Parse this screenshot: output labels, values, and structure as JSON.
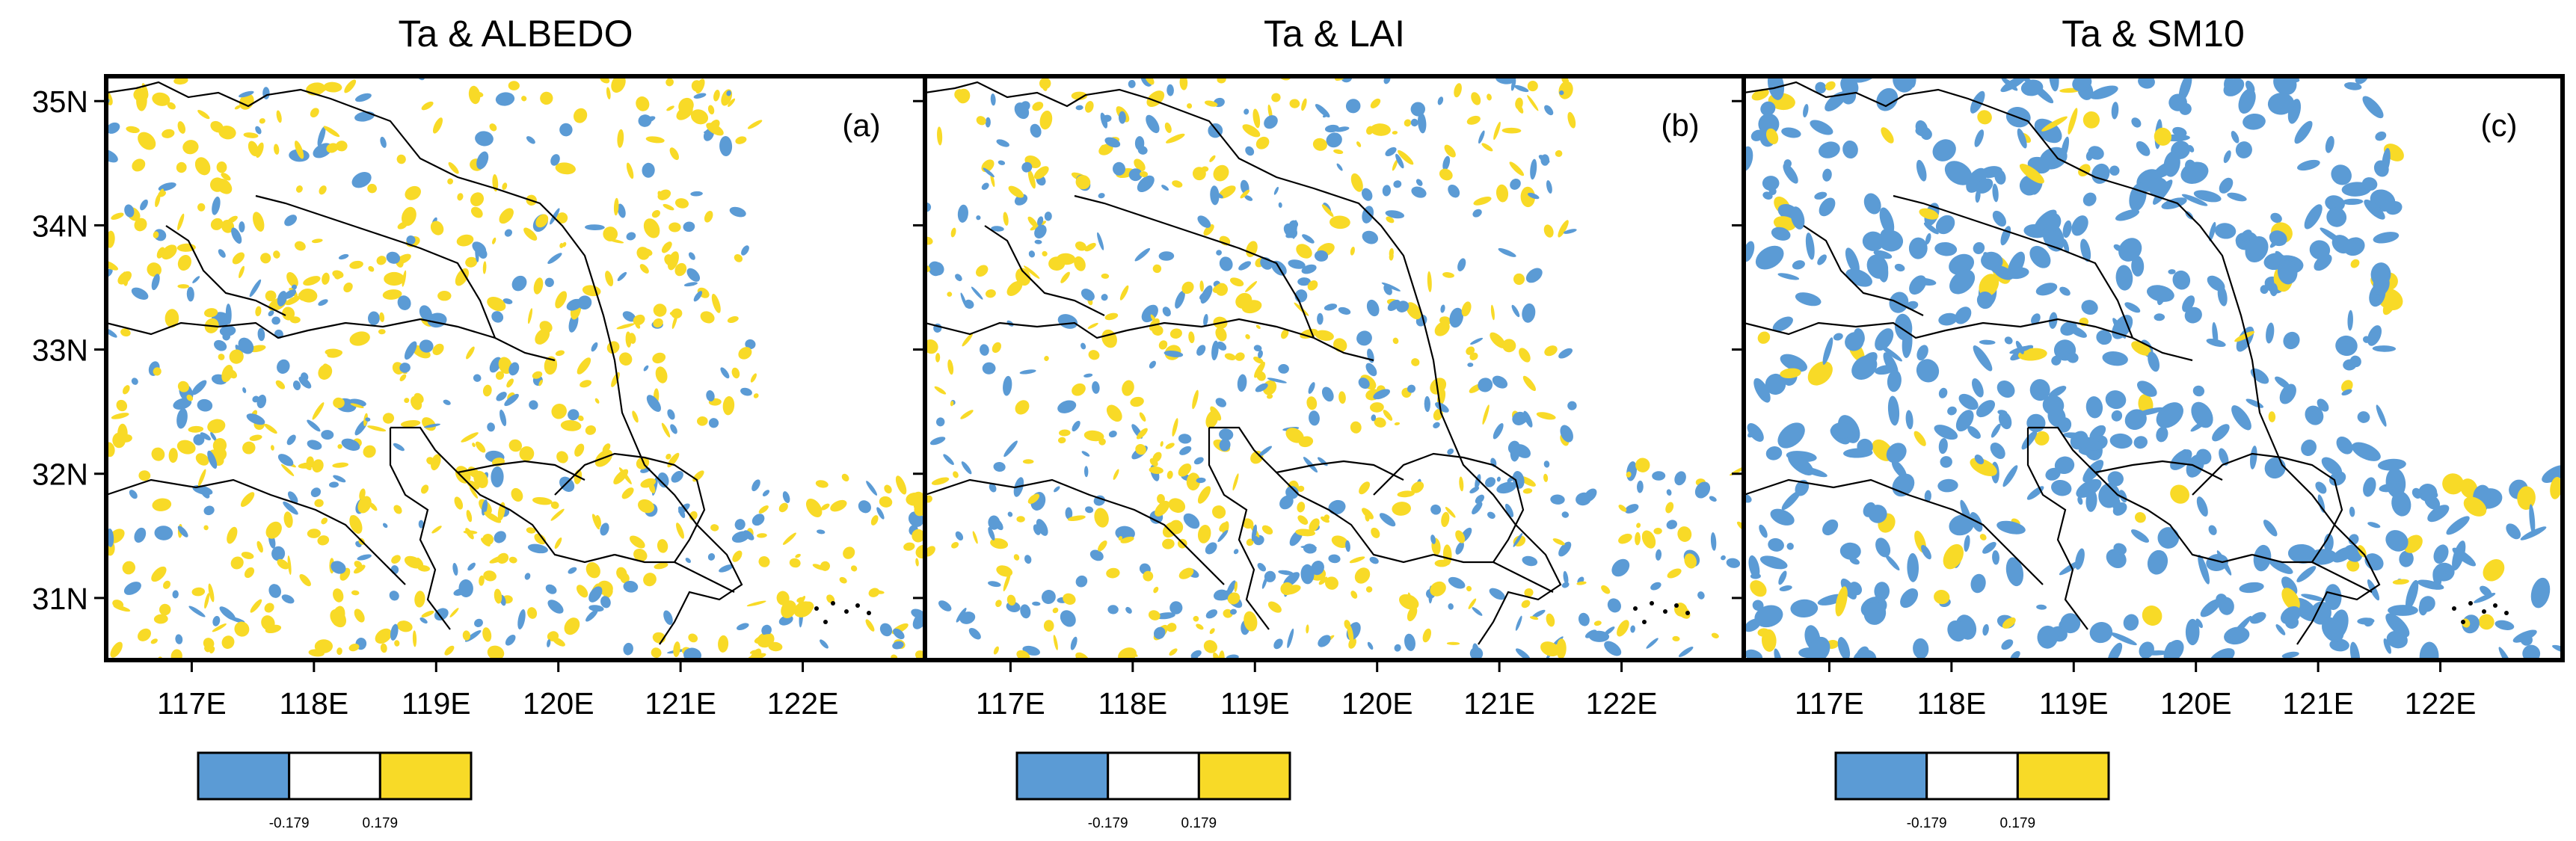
{
  "chart_data": [
    {
      "type": "map",
      "title": "Ta & ALBEDO",
      "panel_label": "(a)",
      "x_ticks": [
        "117E",
        "118E",
        "119E",
        "120E",
        "121E",
        "122E"
      ],
      "y_ticks": [
        "35N",
        "34N",
        "33N",
        "32N",
        "31N"
      ],
      "x_tick_values": [
        117,
        118,
        119,
        120,
        121,
        122
      ],
      "y_tick_values": [
        35,
        34,
        33,
        32,
        31
      ],
      "xlim": [
        116.3,
        123.0
      ],
      "ylim": [
        30.5,
        35.2
      ],
      "colorbar": {
        "colors": [
          "#5b9bd5",
          "#ffffff",
          "#f8da27"
        ],
        "labels": [
          "-0.179",
          "0.179"
        ],
        "bins": [
          "< -0.179",
          "-0.179 to 0.179",
          "> 0.179"
        ]
      },
      "dominant_class": "positive"
    },
    {
      "type": "map",
      "title": "Ta & LAI",
      "panel_label": "(b)",
      "x_ticks": [
        "117E",
        "118E",
        "119E",
        "120E",
        "121E",
        "122E"
      ],
      "y_ticks": [],
      "x_tick_values": [
        117,
        118,
        119,
        120,
        121,
        122
      ],
      "y_tick_values": [
        35,
        34,
        33,
        32,
        31
      ],
      "xlim": [
        116.3,
        123.0
      ],
      "ylim": [
        30.5,
        35.2
      ],
      "colorbar": {
        "colors": [
          "#5b9bd5",
          "#ffffff",
          "#f8da27"
        ],
        "labels": [
          "-0.179",
          "0.179"
        ],
        "bins": [
          "< -0.179",
          "-0.179 to 0.179",
          "> 0.179"
        ]
      },
      "dominant_class": "mixed"
    },
    {
      "type": "map",
      "title": "Ta & SM10",
      "panel_label": "(c)",
      "x_ticks": [
        "117E",
        "118E",
        "119E",
        "120E",
        "121E",
        "122E"
      ],
      "y_ticks": [],
      "x_tick_values": [
        117,
        118,
        119,
        120,
        121,
        122
      ],
      "y_tick_values": [
        35,
        34,
        33,
        32,
        31
      ],
      "xlim": [
        116.3,
        123.0
      ],
      "ylim": [
        30.5,
        35.2
      ],
      "colorbar": {
        "colors": [
          "#5b9bd5",
          "#ffffff",
          "#f8da27"
        ],
        "labels": [
          "-0.179",
          "0.179"
        ],
        "bins": [
          "< -0.179",
          "-0.179 to 0.179",
          "> 0.179"
        ]
      },
      "dominant_class": "negative"
    }
  ]
}
